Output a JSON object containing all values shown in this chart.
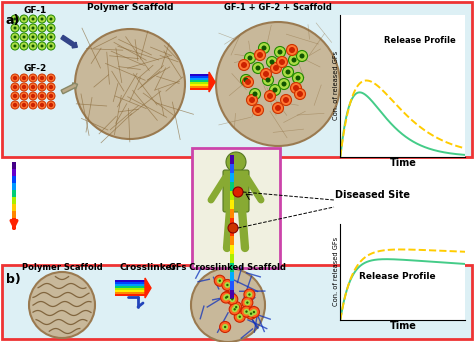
{
  "bg_color": "#ffffff",
  "panel_a_border": "#ee3333",
  "panel_b_border": "#ee3333",
  "panel_a_bg": "#ddf0f5",
  "panel_b_bg": "#ddf0f5",
  "scaffold_color": "#c8b89a",
  "gf1_color": "#aadd44",
  "gf1_border": "#228800",
  "gf2_color": "#ff7733",
  "gf2_border": "#cc3300",
  "diseased_site_text": "Diseased Site",
  "crosslinker_text": "Crosslinker",
  "release_profile_text": "Release Profile",
  "time_text": "Time",
  "ylabel_text": "Con. of released GFs",
  "line1_color": "#44cc88",
  "line2_color": "#ffdd00",
  "label_a": "a)",
  "label_b": "b)",
  "polymer_scaffold_text": "Polymer Scaffold",
  "gf1_text": "GF-1",
  "gf2_text": "GF-2",
  "combined_text": "GF-1 + GF-2 + Scaffold",
  "gfs_crosslinked_text": "GFs Crosslinked Scaffold"
}
